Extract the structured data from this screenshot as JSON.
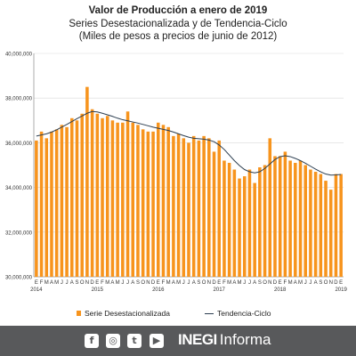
{
  "header": {
    "title": "Valor de Producción a enero de 2019",
    "subtitle_line1": "Series Desestacionalizada y de Tendencia-Ciclo",
    "subtitle_line2": "(Miles de pesos a precios de junio de 2012)"
  },
  "chart_data": {
    "type": "bar",
    "y_tick_labels": [
      "30,000,000",
      "32,000,000",
      "34,000,000",
      "36,000,000",
      "38,000,000",
      "40,000,000"
    ],
    "ylim": [
      30000000,
      40000000
    ],
    "x_month_labels": [
      "E",
      "F",
      "M",
      "A",
      "M",
      "J",
      "J",
      "A",
      "S",
      "O",
      "N",
      "D",
      "E",
      "F",
      "M",
      "A",
      "M",
      "J",
      "J",
      "A",
      "S",
      "O",
      "N",
      "D",
      "E",
      "F",
      "M",
      "A",
      "M",
      "J",
      "J",
      "A",
      "S",
      "O",
      "N",
      "D",
      "E",
      "F",
      "M",
      "A",
      "M",
      "J",
      "J",
      "A",
      "S",
      "O",
      "N",
      "D",
      "E",
      "F",
      "M",
      "A",
      "M",
      "J",
      "J",
      "A",
      "S",
      "O",
      "N",
      "D",
      "E"
    ],
    "x_year_labels": [
      "2014",
      "2015",
      "2016",
      "2017",
      "2018",
      "2019"
    ],
    "grid": true,
    "legend_position": "bottom",
    "series": [
      {
        "name": "Serie Desestacionalizada",
        "type": "bar",
        "color": "#f7941d",
        "values": [
          36100000,
          36500000,
          36200000,
          36500000,
          36600000,
          36800000,
          36700000,
          37100000,
          37000000,
          37300000,
          38500000,
          37500000,
          37300000,
          37100000,
          37200000,
          37000000,
          36900000,
          36900000,
          37400000,
          36900000,
          36800000,
          36600000,
          36500000,
          36500000,
          36900000,
          36800000,
          36700000,
          36300000,
          36400000,
          36200000,
          36000000,
          36300000,
          36100000,
          36300000,
          36200000,
          35600000,
          36100000,
          35200000,
          35100000,
          34800000,
          34400000,
          34500000,
          34800000,
          34200000,
          34900000,
          35000000,
          36200000,
          35400000,
          35400000,
          35600000,
          35200000,
          35100000,
          35200000,
          35000000,
          34800000,
          34700000,
          34600000,
          34300000,
          33900000,
          34600000,
          34600000
        ]
      },
      {
        "name": "Tendencia-Ciclo",
        "type": "line",
        "color": "#2c3e50",
        "values": [
          36300000,
          36350000,
          36400000,
          36480000,
          36580000,
          36700000,
          36820000,
          36950000,
          37080000,
          37200000,
          37320000,
          37400000,
          37380000,
          37320000,
          37250000,
          37180000,
          37100000,
          37030000,
          36980000,
          36930000,
          36880000,
          36820000,
          36760000,
          36700000,
          36650000,
          36600000,
          36550000,
          36480000,
          36400000,
          36320000,
          36250000,
          36200000,
          36180000,
          36160000,
          36120000,
          36050000,
          35900000,
          35700000,
          35450000,
          35200000,
          34980000,
          34800000,
          34700000,
          34650000,
          34700000,
          34850000,
          35050000,
          35250000,
          35380000,
          35420000,
          35380000,
          35300000,
          35200000,
          35080000,
          34950000,
          34820000,
          34700000,
          34600000,
          34550000,
          34560000,
          34580000
        ]
      }
    ]
  },
  "legend": {
    "bar_label": "Serie Desestacionalizada",
    "line_label": "Tendencia-Ciclo"
  },
  "footer": {
    "social_icons": [
      "facebook-icon",
      "instagram-icon",
      "twitter-icon",
      "youtube-icon"
    ],
    "brand_bold": "INEGI",
    "brand_light": "Informa"
  }
}
